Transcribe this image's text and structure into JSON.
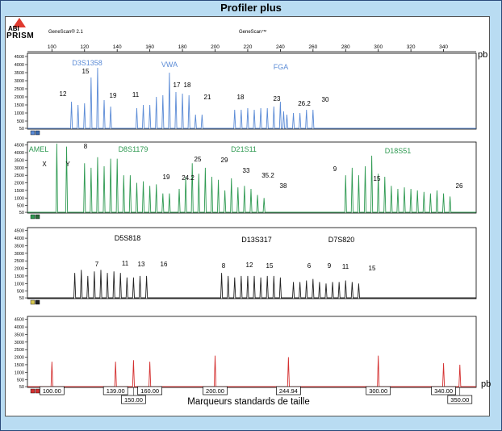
{
  "window": {
    "title": "Profiler plus"
  },
  "header": {
    "logo_line1": "ABI",
    "logo_line2": "PRISM",
    "app_left": "GeneScan® 2.1",
    "app_right": "GeneScan™"
  },
  "axis_top": {
    "ticks": [
      "100",
      "120",
      "140",
      "160",
      "180",
      "200",
      "220",
      "240",
      "260",
      "280",
      "300",
      "320",
      "340"
    ],
    "unit": "pb"
  },
  "footer": {
    "caption": "Marqueurs standards de taille",
    "unit": "pb"
  },
  "chart_data": [
    {
      "type": "line",
      "panel": "blue",
      "color": "#5b8bd6",
      "ylim": [
        0,
        4700
      ],
      "y_ticks": [
        "50",
        "500",
        "1000",
        "1500",
        "2000",
        "2500",
        "3000",
        "3500",
        "4000",
        "4500"
      ],
      "xlim": [
        85,
        360
      ],
      "loci": [
        "D3S1358",
        "VWA",
        "FGA"
      ],
      "allele_labels": [
        "12",
        "15",
        "19",
        "11",
        "17",
        "18",
        "21",
        "18",
        "23",
        "26.2",
        "30"
      ],
      "peaks_bp": [
        112,
        116,
        120,
        124,
        128,
        132,
        136,
        152,
        156,
        160,
        164,
        168,
        172,
        176,
        180,
        184,
        188,
        192,
        212,
        216,
        220,
        224,
        228,
        232,
        236,
        240,
        242,
        244,
        248,
        252,
        256,
        260
      ],
      "peaks_height": [
        1700,
        1500,
        1600,
        3200,
        3800,
        1800,
        1400,
        1300,
        1500,
        1500,
        2000,
        2100,
        3500,
        2300,
        2200,
        2100,
        900,
        900,
        1200,
        1200,
        1300,
        1200,
        1300,
        1300,
        1400,
        1700,
        1100,
        900,
        1000,
        1000,
        1200,
        1200
      ]
    },
    {
      "type": "line",
      "panel": "green",
      "color": "#2f9a52",
      "ylim": [
        0,
        4700
      ],
      "y_ticks": [
        "50",
        "500",
        "1000",
        "1500",
        "2000",
        "2500",
        "3000",
        "3500",
        "4000",
        "4500"
      ],
      "xlim": [
        85,
        360
      ],
      "loci": [
        "AMEL",
        "D8S1179",
        "D21S11",
        "D18S51"
      ],
      "allele_labels": [
        "X",
        "Y",
        "8",
        "19",
        "24.2",
        "25",
        "29",
        "33",
        "35.2",
        "38",
        "9",
        "15",
        "26"
      ],
      "peaks_bp": [
        103,
        109,
        120,
        124,
        128,
        132,
        136,
        140,
        144,
        148,
        152,
        156,
        160,
        164,
        168,
        172,
        178,
        182,
        186,
        190,
        194,
        198,
        202,
        206,
        210,
        214,
        218,
        222,
        226,
        230,
        280,
        284,
        288,
        292,
        296,
        300,
        304,
        308,
        312,
        316,
        320,
        324,
        328,
        332,
        336,
        340,
        344
      ],
      "peaks_height": [
        4600,
        4400,
        3300,
        3000,
        3700,
        3100,
        3600,
        3600,
        2500,
        2500,
        2000,
        2100,
        1800,
        1900,
        1300,
        1300,
        1600,
        2400,
        3300,
        2600,
        3000,
        2400,
        2200,
        1500,
        2300,
        1700,
        1800,
        1600,
        1200,
        1000,
        2500,
        3000,
        2500,
        3100,
        3800,
        2600,
        2400,
        1800,
        1600,
        1700,
        1600,
        1500,
        1400,
        1300,
        1500,
        1300,
        1100
      ]
    },
    {
      "type": "line",
      "panel": "black",
      "color": "#222222",
      "ylim": [
        0,
        4700
      ],
      "y_ticks": [
        "50",
        "500",
        "1000",
        "1500",
        "2000",
        "2500",
        "3000",
        "3500",
        "4000",
        "4500"
      ],
      "xlim": [
        85,
        360
      ],
      "loci": [
        "D5S818",
        "D13S317",
        "D7S820"
      ],
      "allele_labels": [
        "7",
        "11",
        "13",
        "16",
        "8",
        "12",
        "15",
        "6",
        "9",
        "11",
        "15"
      ],
      "peaks_bp": [
        114,
        118,
        122,
        126,
        130,
        134,
        138,
        142,
        146,
        150,
        154,
        158,
        204,
        208,
        212,
        216,
        220,
        224,
        228,
        232,
        236,
        240,
        248,
        252,
        256,
        260,
        264,
        268,
        272,
        276,
        280,
        284,
        288
      ],
      "peaks_height": [
        1700,
        1900,
        1500,
        1800,
        1900,
        1700,
        1800,
        1700,
        1400,
        1400,
        1500,
        1500,
        1700,
        1500,
        1400,
        1500,
        1500,
        1500,
        1400,
        1500,
        1500,
        1400,
        1100,
        1100,
        1200,
        1300,
        1100,
        1000,
        1100,
        1100,
        1200,
        1100,
        1000
      ]
    },
    {
      "type": "line",
      "panel": "red",
      "color": "#d43030",
      "ylim": [
        0,
        4700
      ],
      "y_ticks": [
        "50",
        "500",
        "1000",
        "1500",
        "2000",
        "2500",
        "3000",
        "3500",
        "4000",
        "4500"
      ],
      "xlim": [
        85,
        360
      ],
      "x_markers": [
        "100.00",
        "139.00",
        "150.00",
        "160.00",
        "200.00",
        "244.94",
        "300.00",
        "340.00",
        "350.00"
      ],
      "peaks_bp": [
        100,
        139,
        150,
        160,
        200,
        244.94,
        300,
        340,
        350
      ],
      "peaks_height": [
        1700,
        1700,
        1800,
        1700,
        2100,
        2000,
        2100,
        1600,
        1500
      ]
    }
  ]
}
